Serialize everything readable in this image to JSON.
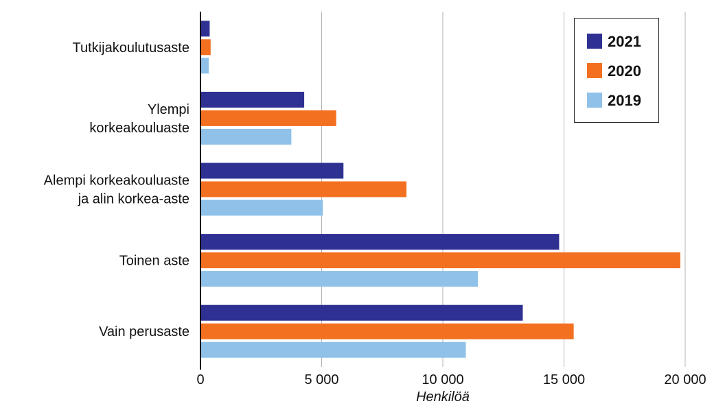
{
  "chart_data": {
    "type": "bar",
    "orientation": "horizontal",
    "categories": [
      "Tutkijakoulutusaste",
      [
        "Ylempi",
        "korkeakouluaste"
      ],
      [
        "Alempi korkeakouluaste",
        "ja alin korkea-aste"
      ],
      "Toinen aste",
      "Vain perusaste"
    ],
    "series": [
      {
        "name": "2021",
        "color": "#2e3192",
        "values": [
          380,
          4280,
          5900,
          14800,
          13300
        ]
      },
      {
        "name": "2020",
        "color": "#f37021",
        "values": [
          420,
          5600,
          8500,
          19800,
          15400
        ]
      },
      {
        "name": "2019",
        "color": "#8fc1e9",
        "values": [
          340,
          3750,
          5050,
          11450,
          10950
        ]
      }
    ],
    "xlabel": "Henkilöä",
    "xlim": [
      0,
      20000
    ],
    "xticks": [
      0,
      5000,
      10000,
      15000,
      20000
    ],
    "xtick_labels": [
      "0",
      "5 000",
      "10 000",
      "15 000",
      "20 000"
    ],
    "grid": "vertical",
    "legend_position": "top-right"
  }
}
